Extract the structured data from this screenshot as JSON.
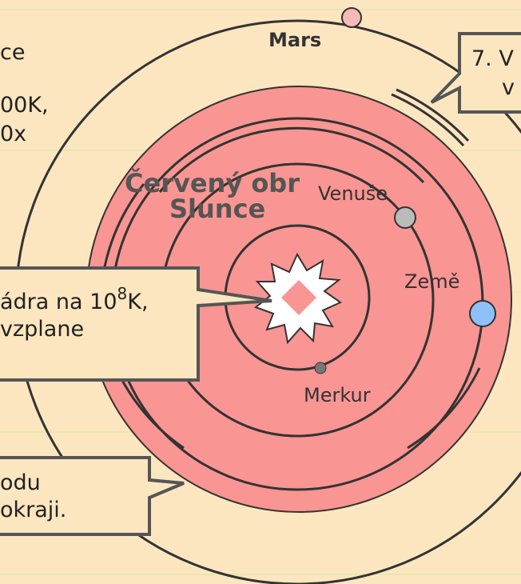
{
  "title": [
    "Červený obr",
    "Slunce"
  ],
  "planets": {
    "mars": "Mars",
    "venus": "Venuše",
    "earth": "Země",
    "mercury": "Merkur"
  },
  "side_text": [
    "ce",
    "00K,",
    "0x"
  ],
  "callouts": {
    "top_right": [
      "7. V",
      "v"
    ],
    "left": [
      "ádra na 10",
      "8",
      "K,",
      "vzplane"
    ],
    "bottom_left": [
      "odu",
      "okraji."
    ]
  }
}
